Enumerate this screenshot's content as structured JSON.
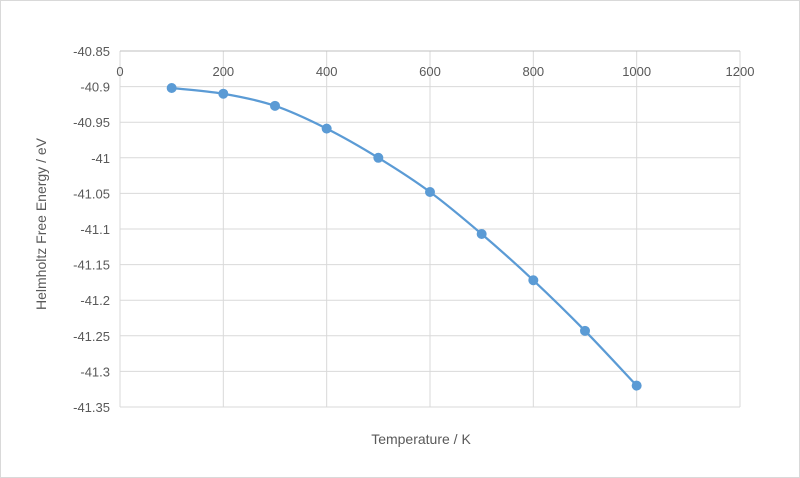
{
  "chart_data": {
    "type": "scatter",
    "smoothed_line": true,
    "title": "",
    "xlabel": "Temperature / K",
    "ylabel": "Helmholtz Free Energy / eV",
    "xlim": [
      0,
      1200
    ],
    "ylim": [
      -41.35,
      -40.85
    ],
    "x_axis_position": "top",
    "grid": true,
    "legend": "none",
    "series_color": "#5b9bd5",
    "x_ticks": [
      "0",
      "200",
      "400",
      "600",
      "800",
      "1000",
      "1200"
    ],
    "y_ticks": [
      "-40.85",
      "-40.9",
      "-40.95",
      "-41",
      "-41.05",
      "-41.1",
      "-41.15",
      "-41.2",
      "-41.25",
      "-41.3",
      "-41.35"
    ],
    "series": [
      {
        "x": [
          100,
          200,
          300,
          400,
          500,
          600,
          700,
          800,
          900,
          1000
        ],
        "y": [
          -40.902,
          -40.91,
          -40.927,
          -40.959,
          -41.0,
          -41.048,
          -41.107,
          -41.172,
          -41.243,
          -41.32
        ]
      }
    ]
  }
}
